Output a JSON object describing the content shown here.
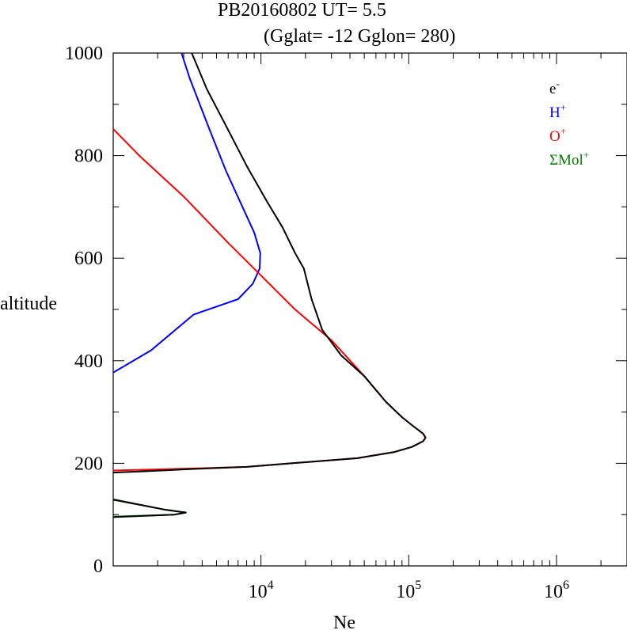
{
  "chart_data": {
    "type": "line",
    "title_line1": "PB20160802   UT=  5.5",
    "title_line2": "(Gglat= -12   Gglon=  280)",
    "xlabel": "Ne",
    "ylabel": "altitude",
    "xscale": "log",
    "xlim": [
      1000,
      3000000
    ],
    "ylim": [
      0,
      1000
    ],
    "yticks": [
      0,
      200,
      400,
      600,
      800,
      1000
    ],
    "ytick_labels": [
      "0",
      "200",
      "400",
      "600",
      "800",
      "1000"
    ],
    "xtick_base": "10",
    "xtick_exponents": [
      "4",
      "5",
      "6"
    ],
    "xtick_values": [
      10000,
      100000,
      1000000
    ],
    "legend_position": "top-right",
    "legend": [
      {
        "base": "e",
        "sup": "-",
        "color": "#000000"
      },
      {
        "base": "H",
        "sup": "+",
        "color": "#0000ff"
      },
      {
        "base": "O",
        "sup": "+",
        "color": "#ff0000"
      },
      {
        "base": "ΣMol",
        "sup": "+",
        "color": "#008000"
      }
    ],
    "series": [
      {
        "name": "ΣMol+",
        "color": "#008000",
        "points": [
          [
            1000,
            96
          ],
          [
            2600,
            100
          ],
          [
            3100,
            104
          ],
          [
            2200,
            110
          ],
          [
            1000,
            130
          ]
        ]
      },
      {
        "name": "H+",
        "color": "#0000ff",
        "points": [
          [
            1000,
            377
          ],
          [
            1800,
            420
          ],
          [
            3500,
            490
          ],
          [
            7000,
            520
          ],
          [
            8800,
            550
          ],
          [
            9800,
            580
          ],
          [
            9900,
            610
          ],
          [
            9000,
            650
          ],
          [
            7500,
            700
          ],
          [
            5800,
            770
          ],
          [
            4500,
            850
          ],
          [
            3300,
            950
          ],
          [
            2900,
            1000
          ]
        ]
      },
      {
        "name": "O+",
        "color": "#ff0000",
        "points": [
          [
            1000,
            186
          ],
          [
            1800,
            188
          ],
          [
            3500,
            190
          ],
          [
            8000,
            193
          ],
          [
            16000,
            200
          ],
          [
            45000,
            210
          ],
          [
            80000,
            222
          ],
          [
            105000,
            232
          ],
          [
            125000,
            243
          ],
          [
            130000,
            250
          ],
          [
            125000,
            258
          ],
          [
            110000,
            270
          ],
          [
            90000,
            290
          ],
          [
            70000,
            320
          ],
          [
            50000,
            370
          ],
          [
            30000,
            440
          ],
          [
            17000,
            500
          ],
          [
            9700,
            570
          ],
          [
            6000,
            630
          ],
          [
            3000,
            720
          ],
          [
            1500,
            800
          ],
          [
            1000,
            852
          ]
        ]
      },
      {
        "name": "e-",
        "color": "#000000",
        "points": [
          [
            [
              1000,
              182
            ],
            [
              1800,
              185
            ],
            [
              3500,
              189
            ],
            [
              8000,
              193
            ],
            [
              16000,
              200
            ],
            [
              45000,
              210
            ],
            [
              80000,
              222
            ],
            [
              105000,
              232
            ],
            [
              125000,
              243
            ],
            [
              130000,
              250
            ],
            [
              125000,
              258
            ],
            [
              110000,
              270
            ],
            [
              90000,
              290
            ],
            [
              70000,
              320
            ],
            [
              50000,
              370
            ],
            [
              35000,
              410
            ],
            [
              26000,
              460
            ],
            [
              22000,
              520
            ],
            [
              19500,
              580
            ],
            [
              17000,
              610
            ],
            [
              14000,
              660
            ],
            [
              11000,
              710
            ],
            [
              8000,
              780
            ],
            [
              6000,
              850
            ],
            [
              4300,
              930
            ],
            [
              3400,
              1000
            ]
          ],
          [
            [
              1000,
              95
            ],
            [
              2600,
              100
            ],
            [
              3100,
              104
            ],
            [
              2200,
              110
            ],
            [
              1000,
              129
            ]
          ]
        ]
      }
    ]
  }
}
